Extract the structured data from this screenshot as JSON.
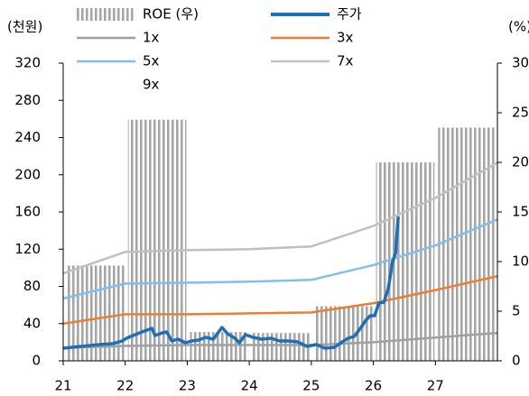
{
  "chart_data": {
    "type": "band",
    "y_unit": "(천원)",
    "y2_unit": "(%)",
    "xlim": [
      21,
      28
    ],
    "xticks": [
      21,
      22,
      23,
      24,
      25,
      26,
      27
    ],
    "ylim": [
      0,
      320
    ],
    "yticks": [
      0,
      40,
      80,
      120,
      160,
      200,
      240,
      280,
      320
    ],
    "y2lim": [
      0,
      30
    ],
    "y2ticks": [
      0,
      5,
      10,
      15,
      20,
      25,
      30
    ],
    "series": [
      {
        "name": "ROE (우)",
        "type": "bar",
        "axis": "y2",
        "color": "#a6a6a6",
        "x": [
          21,
          22,
          23,
          24,
          25,
          26,
          27
        ],
        "values": [
          9.6,
          24.3,
          2.9,
          2.8,
          5.5,
          20,
          23.5
        ]
      },
      {
        "name": "주가",
        "type": "line",
        "color": "#1f6fb5",
        "x": [
          21.0,
          21.29,
          21.58,
          21.8,
          21.95,
          22.02,
          22.16,
          22.31,
          22.43,
          22.48,
          22.6,
          22.67,
          22.75,
          22.85,
          22.97,
          23.07,
          23.18,
          23.3,
          23.42,
          23.56,
          23.65,
          23.77,
          23.84,
          23.94,
          24.06,
          24.2,
          24.35,
          24.49,
          24.64,
          24.78,
          24.93,
          25.08,
          25.22,
          25.37,
          25.48,
          25.59,
          25.69,
          25.77,
          25.88,
          25.95,
          26.02,
          26.09,
          26.17,
          26.24,
          26.31,
          26.36,
          26.4
        ],
        "values": [
          13.6,
          15.5,
          17.5,
          18.4,
          21.3,
          24.2,
          28.1,
          32.0,
          34.9,
          27.2,
          30.1,
          31.0,
          21.3,
          23.3,
          19.4,
          21.3,
          22.3,
          25.2,
          23.3,
          35.9,
          29.1,
          24.2,
          19.4,
          28.1,
          25.2,
          23.3,
          24.2,
          21.3,
          21.3,
          20.4,
          15.5,
          17.5,
          13.6,
          14.5,
          19.4,
          24.2,
          26.2,
          33.0,
          43.6,
          48.5,
          48.5,
          62.1,
          63.0,
          77.6,
          106.7,
          116,
          155
        ]
      },
      {
        "name": "1x",
        "type": "line",
        "color": "#a0a0a0",
        "x": [
          21,
          22,
          23,
          24,
          25,
          26,
          27,
          28
        ],
        "values": [
          14,
          16,
          17,
          17,
          17,
          20,
          25,
          30
        ]
      },
      {
        "name": "3x",
        "type": "line",
        "color": "#ed7d31",
        "x": [
          21,
          22,
          23,
          24,
          25,
          26,
          27,
          28
        ],
        "values": [
          40,
          50,
          50,
          51,
          52,
          62,
          76,
          91
        ]
      },
      {
        "name": "5x",
        "type": "line",
        "color": "#7fbfef",
        "x": [
          21,
          22,
          23,
          24,
          25,
          26,
          27,
          28
        ],
        "values": [
          67,
          83,
          84,
          85,
          87,
          103,
          124,
          152
        ]
      },
      {
        "name": "7x",
        "type": "line",
        "color": "#c0c0c0",
        "x": [
          21,
          22,
          23,
          24,
          25,
          26,
          27,
          28
        ],
        "values": [
          94,
          117,
          119,
          120,
          123,
          145,
          175,
          213
        ]
      },
      {
        "name": "9x",
        "type": "line",
        "color": "none",
        "x": [
          21,
          22,
          23,
          24,
          25,
          26,
          27,
          28
        ],
        "values": [
          null,
          null,
          null,
          null,
          null,
          null,
          null,
          null
        ]
      }
    ]
  }
}
